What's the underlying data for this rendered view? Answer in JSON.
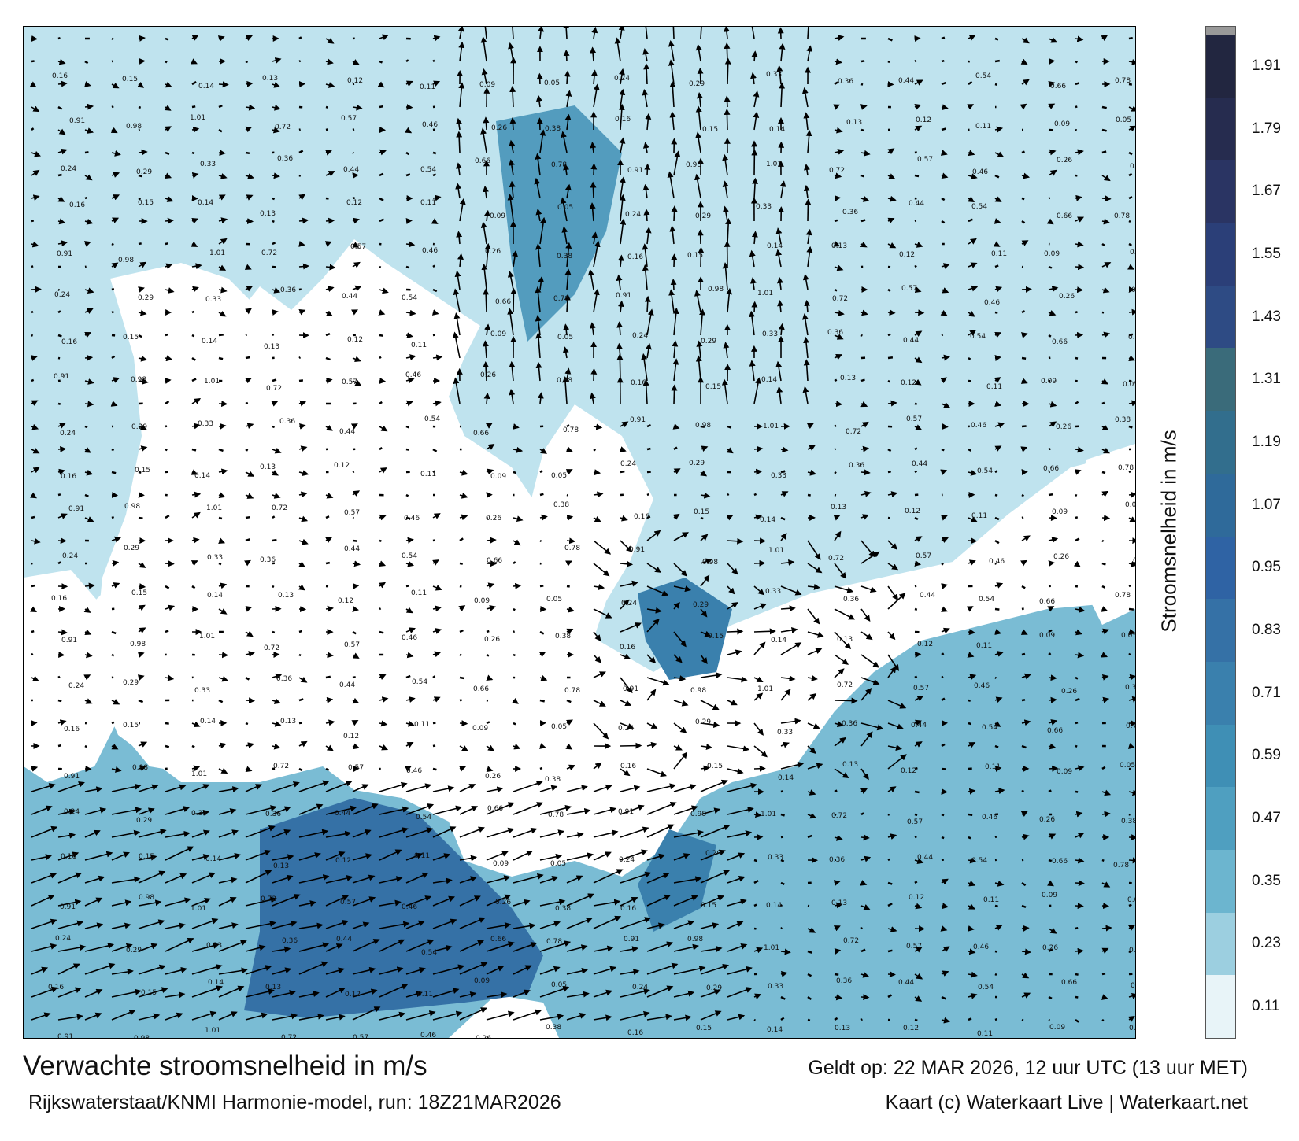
{
  "title": "Verwachte stroomsnelheid in m/s",
  "subtitle": "Rijkswaterstaat/KNMI Harmonie-model, run: 18Z21MAR2026",
  "valid_time": "Geldt op: 22 MAR 2026, 12 uur UTC (13 uur MET)",
  "credits": "Kaart (c) Waterkaart Live | Waterkaart.net",
  "colorbar": {
    "title": "Stroomsnelheid in m/s",
    "labels": [
      "1.91",
      "1.79",
      "1.67",
      "1.55",
      "1.43",
      "1.31",
      "1.19",
      "1.07",
      "0.95",
      "0.83",
      "0.71",
      "0.59",
      "0.47",
      "0.35",
      "0.23",
      "0.11"
    ],
    "colors": [
      "#222640",
      "#262c4f",
      "#2a3463",
      "#2b3f78",
      "#2e4b84",
      "#3a6b7a",
      "#326e8d",
      "#2f6a9a",
      "#2f63a4",
      "#3571a6",
      "#3a80ad",
      "#3f8fb5",
      "#4f9fc0",
      "#6cb5cf",
      "#9ccfe0",
      "#e8f4f8"
    ]
  },
  "annotations": [
    {
      "lon_pos": "sample",
      "text": "0.16"
    },
    {
      "text": "0.15"
    },
    {
      "text": "0.14"
    },
    {
      "text": "0.13"
    },
    {
      "text": "0.12"
    },
    {
      "text": "0.11"
    },
    {
      "text": "0.09"
    },
    {
      "text": "0.05"
    },
    {
      "text": "0.24"
    },
    {
      "text": "0.29"
    },
    {
      "text": "0.33"
    },
    {
      "text": "0.36"
    },
    {
      "text": "0.44"
    },
    {
      "text": "0.54"
    },
    {
      "text": "0.66"
    },
    {
      "text": "0.78"
    },
    {
      "text": "0.91"
    },
    {
      "text": "0.98"
    },
    {
      "text": "1.01"
    },
    {
      "text": "0.72"
    },
    {
      "text": "0.57"
    },
    {
      "text": "0.46"
    },
    {
      "text": "0.26"
    },
    {
      "text": "0.38"
    }
  ],
  "chart_data": {
    "type": "heatmap",
    "title": "Verwachte stroomsnelheid in m/s",
    "colorbar_label": "Stroomsnelheid in m/s",
    "colorbar_ticks": [
      0.11,
      0.23,
      0.35,
      0.47,
      0.59,
      0.71,
      0.83,
      0.95,
      1.07,
      1.19,
      1.31,
      1.43,
      1.55,
      1.67,
      1.79,
      1.91
    ]
  }
}
